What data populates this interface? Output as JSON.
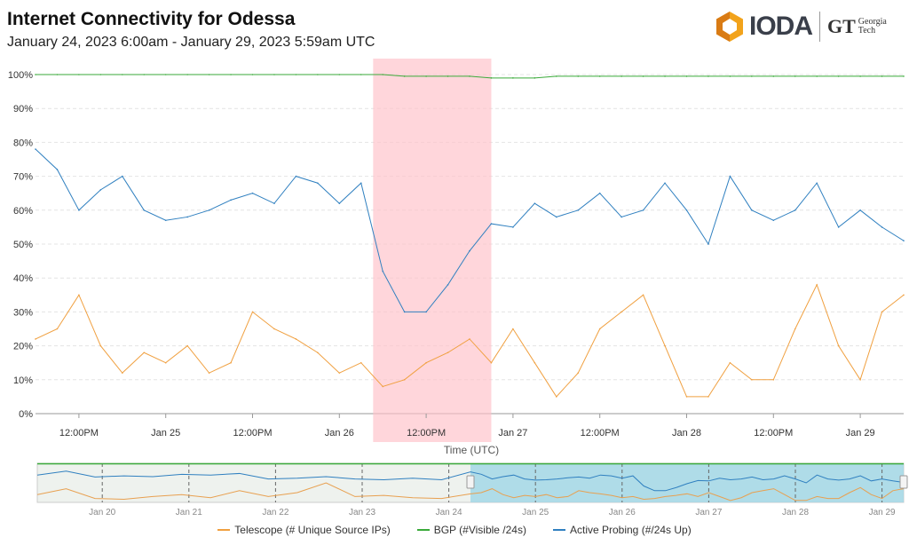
{
  "header": {
    "title": "Internet Connectivity for  Odessa",
    "subtitle": "January 24, 2023 6:00am - January 29, 2023 5:59am UTC",
    "logo_text": "IODA",
    "partner_logo": "Georgia Tech"
  },
  "chart_data": {
    "type": "line",
    "xlabel": "Time (UTC)",
    "x_range": [
      "2023-01-24 06:00",
      "2023-01-29 05:59"
    ],
    "ylim": [
      0,
      100
    ],
    "yticks": [
      "0%",
      "10%",
      "20%",
      "30%",
      "40%",
      "50%",
      "60%",
      "70%",
      "80%",
      "90%",
      "100%"
    ],
    "xticks": [
      "12:00PM",
      "Jan 25",
      "12:00PM",
      "Jan 26",
      "12:00PM",
      "Jan 27",
      "12:00PM",
      "Jan 28",
      "12:00PM",
      "Jan 29"
    ],
    "grid": true,
    "legend_position": "bottom",
    "sample_interval_hours": 3,
    "highlight": {
      "start": "2023-01-26 04:40",
      "end": "2023-01-26 21:00",
      "color": "#ffc0c8"
    },
    "series": [
      {
        "name": "Telescope (# Unique Source IPs)",
        "color": "#f0a040",
        "values": [
          22,
          25,
          35,
          20,
          12,
          18,
          15,
          20,
          12,
          15,
          30,
          25,
          22,
          18,
          12,
          15,
          8,
          10,
          15,
          18,
          22,
          15,
          25,
          15,
          5,
          12,
          25,
          30,
          35,
          20,
          5,
          5,
          15,
          10,
          10,
          25,
          38,
          20,
          10,
          30,
          35
        ]
      },
      {
        "name": "BGP (#Visible /24s)",
        "color": "#3aaa3a",
        "values": [
          100,
          100,
          100,
          100,
          100,
          100,
          100,
          100,
          100,
          100,
          100,
          100,
          100,
          100,
          100,
          100,
          100,
          99.5,
          99.5,
          99.5,
          99.5,
          99,
          99,
          99,
          99.5,
          99.5,
          99.5,
          99.5,
          99.5,
          99.5,
          99.5,
          99.5,
          99.5,
          99.5,
          99.5,
          99.5,
          99.5,
          99.5,
          99.5,
          99.5,
          99.5
        ]
      },
      {
        "name": "Active Probing (#/24s Up)",
        "color": "#3080c0",
        "values": [
          78,
          72,
          60,
          66,
          70,
          60,
          57,
          58,
          60,
          63,
          65,
          62,
          70,
          68,
          62,
          68,
          42,
          30,
          30,
          38,
          48,
          56,
          55,
          62,
          58,
          60,
          65,
          58,
          60,
          68,
          60,
          50,
          70,
          60,
          57,
          60,
          68,
          55,
          60,
          55,
          51
        ]
      }
    ],
    "navigator": {
      "xticks": [
        "Jan 20",
        "Jan 21",
        "Jan 22",
        "Jan 23",
        "Jan 24",
        "Jan 25",
        "Jan 26",
        "Jan 27",
        "Jan 28",
        "Jan 29"
      ],
      "selection": [
        "2023-01-24 06:00",
        "2023-01-29 05:59"
      ],
      "earlier_telescope": [
        20,
        35,
        10,
        8,
        15,
        20,
        12,
        30,
        15,
        25,
        50,
        15,
        18,
        12,
        10
      ],
      "earlier_probing": [
        70,
        80,
        65,
        68,
        66,
        72,
        70,
        74,
        60,
        62,
        66,
        60,
        58,
        62,
        58
      ]
    }
  }
}
